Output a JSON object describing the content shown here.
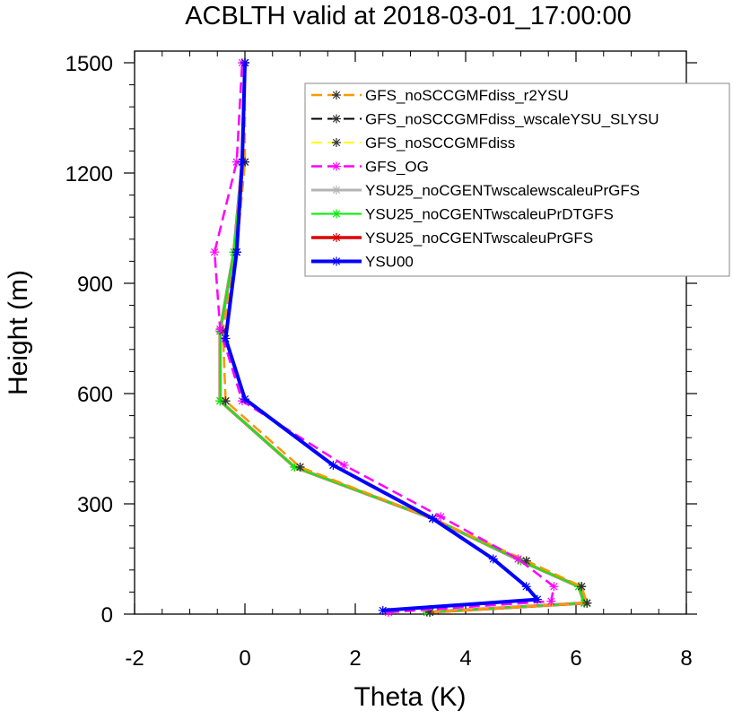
{
  "chart_data": {
    "type": "line",
    "title": "ACBLTH valid at 2018-03-01_17:00:00",
    "xlabel": "Theta (K)",
    "ylabel": "Height (m)",
    "xlim": [
      -2,
      8
    ],
    "ylim": [
      0,
      1500
    ],
    "xticks": [
      "-2",
      "0",
      "2",
      "4",
      "6",
      "8"
    ],
    "yticks": [
      "0",
      "300",
      "600",
      "900",
      "1200",
      "1500"
    ],
    "xtick_values": [
      -2,
      0,
      2,
      4,
      6,
      8
    ],
    "ytick_values": [
      0,
      300,
      600,
      900,
      1200,
      1500
    ],
    "legend_position": "top-right",
    "series": [
      {
        "name": "GFS_noSCCGMFdiss_r2YSU",
        "color": "#ff9900",
        "dash": "dashed",
        "width": 2.5,
        "points": [
          [
            3.35,
            5
          ],
          [
            6.2,
            30
          ],
          [
            6.1,
            75
          ],
          [
            5.1,
            145
          ],
          [
            3.4,
            260
          ],
          [
            1.0,
            400
          ],
          [
            -0.35,
            580
          ],
          [
            -0.4,
            770
          ],
          [
            -0.15,
            985
          ],
          [
            0.0,
            1230
          ],
          [
            0.0,
            1500
          ]
        ]
      },
      {
        "name": "GFS_noSCCGMFdiss_wscaleYSU_SLYSU",
        "color": "#000000",
        "dash": "dashed",
        "width": 2,
        "points": [
          [
            3.35,
            5
          ],
          [
            6.2,
            30
          ],
          [
            6.1,
            75
          ],
          [
            5.1,
            145
          ],
          [
            3.4,
            260
          ],
          [
            1.0,
            400
          ],
          [
            -0.35,
            580
          ],
          [
            -0.4,
            770
          ],
          [
            -0.15,
            985
          ],
          [
            0.0,
            1230
          ],
          [
            0.0,
            1500
          ]
        ]
      },
      {
        "name": "GFS_noSCCGMFdiss",
        "color": "#ffff00",
        "dash": "dashed",
        "width": 2,
        "points": [
          [
            3.35,
            5
          ],
          [
            6.2,
            30
          ],
          [
            6.1,
            75
          ],
          [
            5.1,
            145
          ],
          [
            3.4,
            260
          ],
          [
            1.0,
            400
          ],
          [
            -0.35,
            580
          ],
          [
            -0.4,
            770
          ],
          [
            -0.15,
            985
          ],
          [
            0.0,
            1230
          ],
          [
            0.0,
            1500
          ]
        ]
      },
      {
        "name": "GFS_OG",
        "color": "#ff00ff",
        "dash": "dashed",
        "width": 2.5,
        "points": [
          [
            2.6,
            5
          ],
          [
            5.55,
            35
          ],
          [
            5.6,
            75
          ],
          [
            4.95,
            150
          ],
          [
            3.55,
            265
          ],
          [
            1.8,
            405
          ],
          [
            -0.05,
            580
          ],
          [
            -0.45,
            775
          ],
          [
            -0.55,
            985
          ],
          [
            -0.15,
            1230
          ],
          [
            -0.05,
            1500
          ]
        ]
      },
      {
        "name": "YSU25_noCGENTwscalewscaleuPrGFS",
        "color": "#b4b4b4",
        "dash": "solid",
        "width": 3,
        "points": [
          [
            3.3,
            5
          ],
          [
            6.15,
            30
          ],
          [
            6.05,
            75
          ],
          [
            5.0,
            145
          ],
          [
            3.4,
            260
          ],
          [
            0.9,
            400
          ],
          [
            -0.45,
            580
          ],
          [
            -0.45,
            770
          ],
          [
            -0.2,
            985
          ],
          [
            -0.05,
            1230
          ],
          [
            0.0,
            1500
          ]
        ]
      },
      {
        "name": "YSU25_noCGENTwscaleuPrDTGFS",
        "color": "#00ee00",
        "dash": "solid",
        "width": 2,
        "points": [
          [
            3.3,
            5
          ],
          [
            6.15,
            30
          ],
          [
            6.05,
            75
          ],
          [
            5.0,
            145
          ],
          [
            3.4,
            260
          ],
          [
            0.9,
            400
          ],
          [
            -0.45,
            580
          ],
          [
            -0.45,
            770
          ],
          [
            -0.2,
            985
          ],
          [
            -0.05,
            1230
          ],
          [
            0.0,
            1500
          ]
        ]
      },
      {
        "name": "YSU25_noCGENTwscaleuPrGFS",
        "color": "#dd0000",
        "dash": "solid",
        "width": 3.5,
        "points": [
          [
            3.3,
            5
          ],
          [
            6.15,
            30
          ],
          [
            6.05,
            75
          ],
          [
            5.0,
            145
          ],
          [
            3.4,
            260
          ],
          [
            0.9,
            400
          ],
          [
            -0.45,
            580
          ],
          [
            -0.45,
            770
          ],
          [
            -0.2,
            985
          ],
          [
            -0.05,
            1230
          ],
          [
            0.0,
            1500
          ]
        ]
      },
      {
        "name": "YSU00",
        "color": "#0000ff",
        "dash": "solid",
        "width": 4,
        "points": [
          [
            2.5,
            10
          ],
          [
            5.3,
            40
          ],
          [
            5.1,
            75
          ],
          [
            4.5,
            150
          ],
          [
            3.4,
            260
          ],
          [
            1.6,
            405
          ],
          [
            0.0,
            585
          ],
          [
            -0.35,
            750
          ],
          [
            -0.15,
            985
          ],
          [
            -0.05,
            1230
          ],
          [
            0.0,
            1500
          ]
        ]
      }
    ]
  }
}
